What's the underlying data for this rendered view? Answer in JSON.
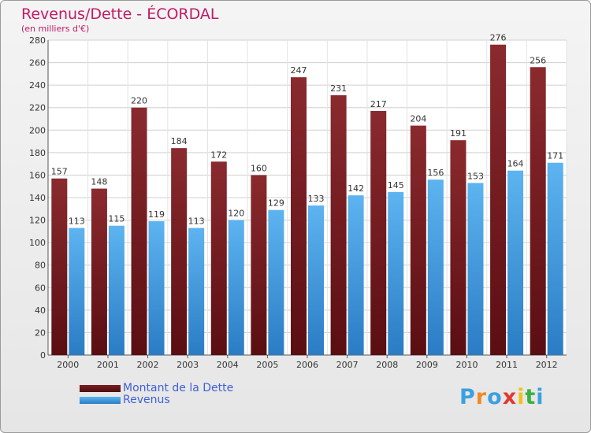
{
  "chart_data": {
    "type": "bar",
    "title": "Revenus/Dette - ÉCORDAL",
    "subtitle": "(en milliers d'€)",
    "categories": [
      "2000",
      "2001",
      "2002",
      "2003",
      "2004",
      "2005",
      "2006",
      "2007",
      "2008",
      "2009",
      "2010",
      "2011",
      "2012"
    ],
    "series": [
      {
        "name": "Montant de la Dette",
        "values": [
          157,
          148,
          220,
          184,
          172,
          160,
          247,
          231,
          217,
          204,
          191,
          276,
          256
        ],
        "color": "#6e1a1e"
      },
      {
        "name": "Revenus",
        "values": [
          113,
          115,
          119,
          113,
          120,
          129,
          133,
          142,
          145,
          156,
          153,
          164,
          171
        ],
        "color": "#4aa3e6"
      }
    ],
    "ylim": [
      0,
      280
    ],
    "yticks": [
      0,
      20,
      40,
      60,
      80,
      100,
      120,
      140,
      160,
      180,
      200,
      220,
      240,
      260,
      280
    ],
    "grid": true,
    "legend_position": "bottom-left"
  },
  "logo": {
    "letters": [
      "P",
      "r",
      "o",
      "x",
      "i",
      "t",
      "i"
    ],
    "colors": [
      "#3aa0e0",
      "#f08a24",
      "#3aa0e0",
      "#e03a30",
      "#f0c020",
      "#3ab040",
      "#3aa0e0"
    ]
  }
}
